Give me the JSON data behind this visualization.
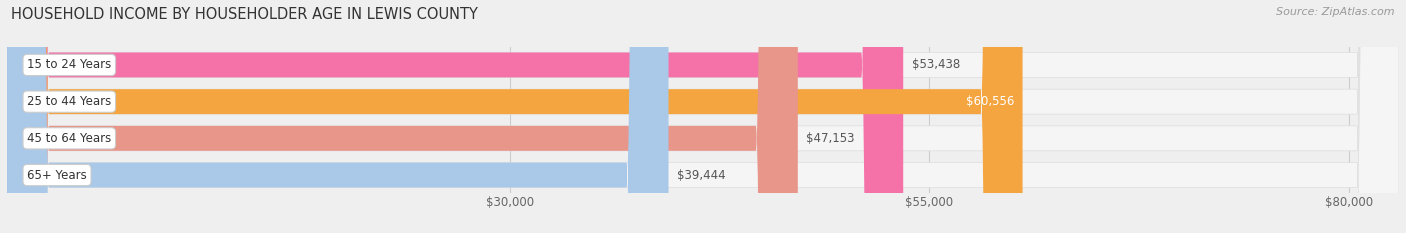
{
  "title": "HOUSEHOLD INCOME BY HOUSEHOLDER AGE IN LEWIS COUNTY",
  "source": "Source: ZipAtlas.com",
  "categories": [
    "15 to 24 Years",
    "25 to 44 Years",
    "45 to 64 Years",
    "65+ Years"
  ],
  "values": [
    53438,
    60556,
    47153,
    39444
  ],
  "bar_colors": [
    "#f472a8",
    "#f5a540",
    "#e8958a",
    "#aac8e8"
  ],
  "value_labels": [
    "$53,438",
    "$60,556",
    "$47,153",
    "$39,444"
  ],
  "x_ticks": [
    30000,
    55000,
    80000
  ],
  "x_tick_labels": [
    "$30,000",
    "$55,000",
    "$80,000"
  ],
  "xlim_max": 83000,
  "background_color": "#efefef",
  "bar_bg_color": "#f5f5f5",
  "bar_bg_edge_color": "#dddddd",
  "title_fontsize": 10.5,
  "source_fontsize": 8,
  "label_fontsize": 8.5,
  "value_fontsize": 8.5,
  "tick_fontsize": 8.5
}
